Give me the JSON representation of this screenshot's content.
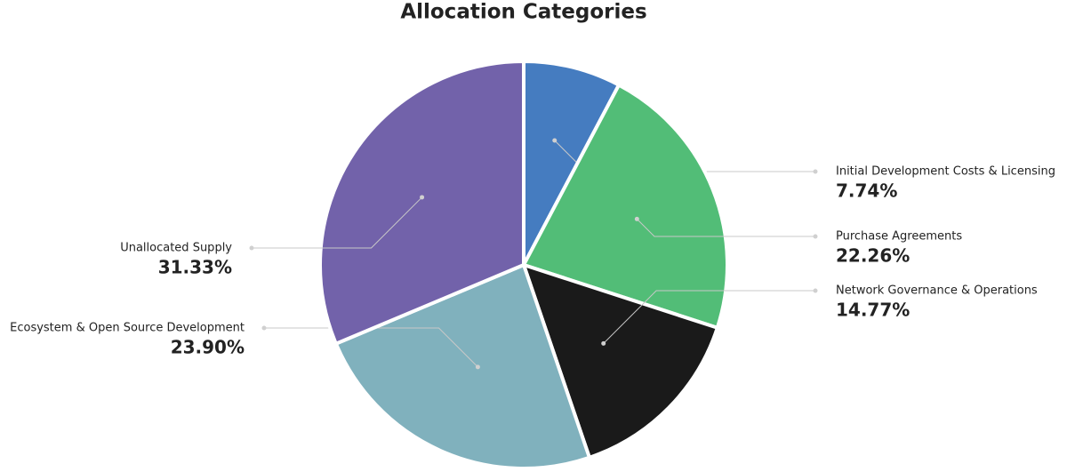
{
  "chart_data": {
    "type": "pie",
    "title": "Allocation Categories",
    "categories": [
      "Initial Development Costs & Licensing",
      "Purchase Agreements",
      "Network Governance & Operations",
      "Ecosystem & Open Source Development",
      "Unallocated Supply"
    ],
    "values": [
      7.74,
      22.26,
      14.77,
      23.9,
      31.33
    ],
    "value_labels": [
      "7.74%",
      "22.26%",
      "14.77%",
      "23.90%",
      "31.33%"
    ],
    "colors": [
      "#457cc0",
      "#52bd77",
      "#1a1a1a",
      "#80b1bd",
      "#7262aa"
    ]
  }
}
